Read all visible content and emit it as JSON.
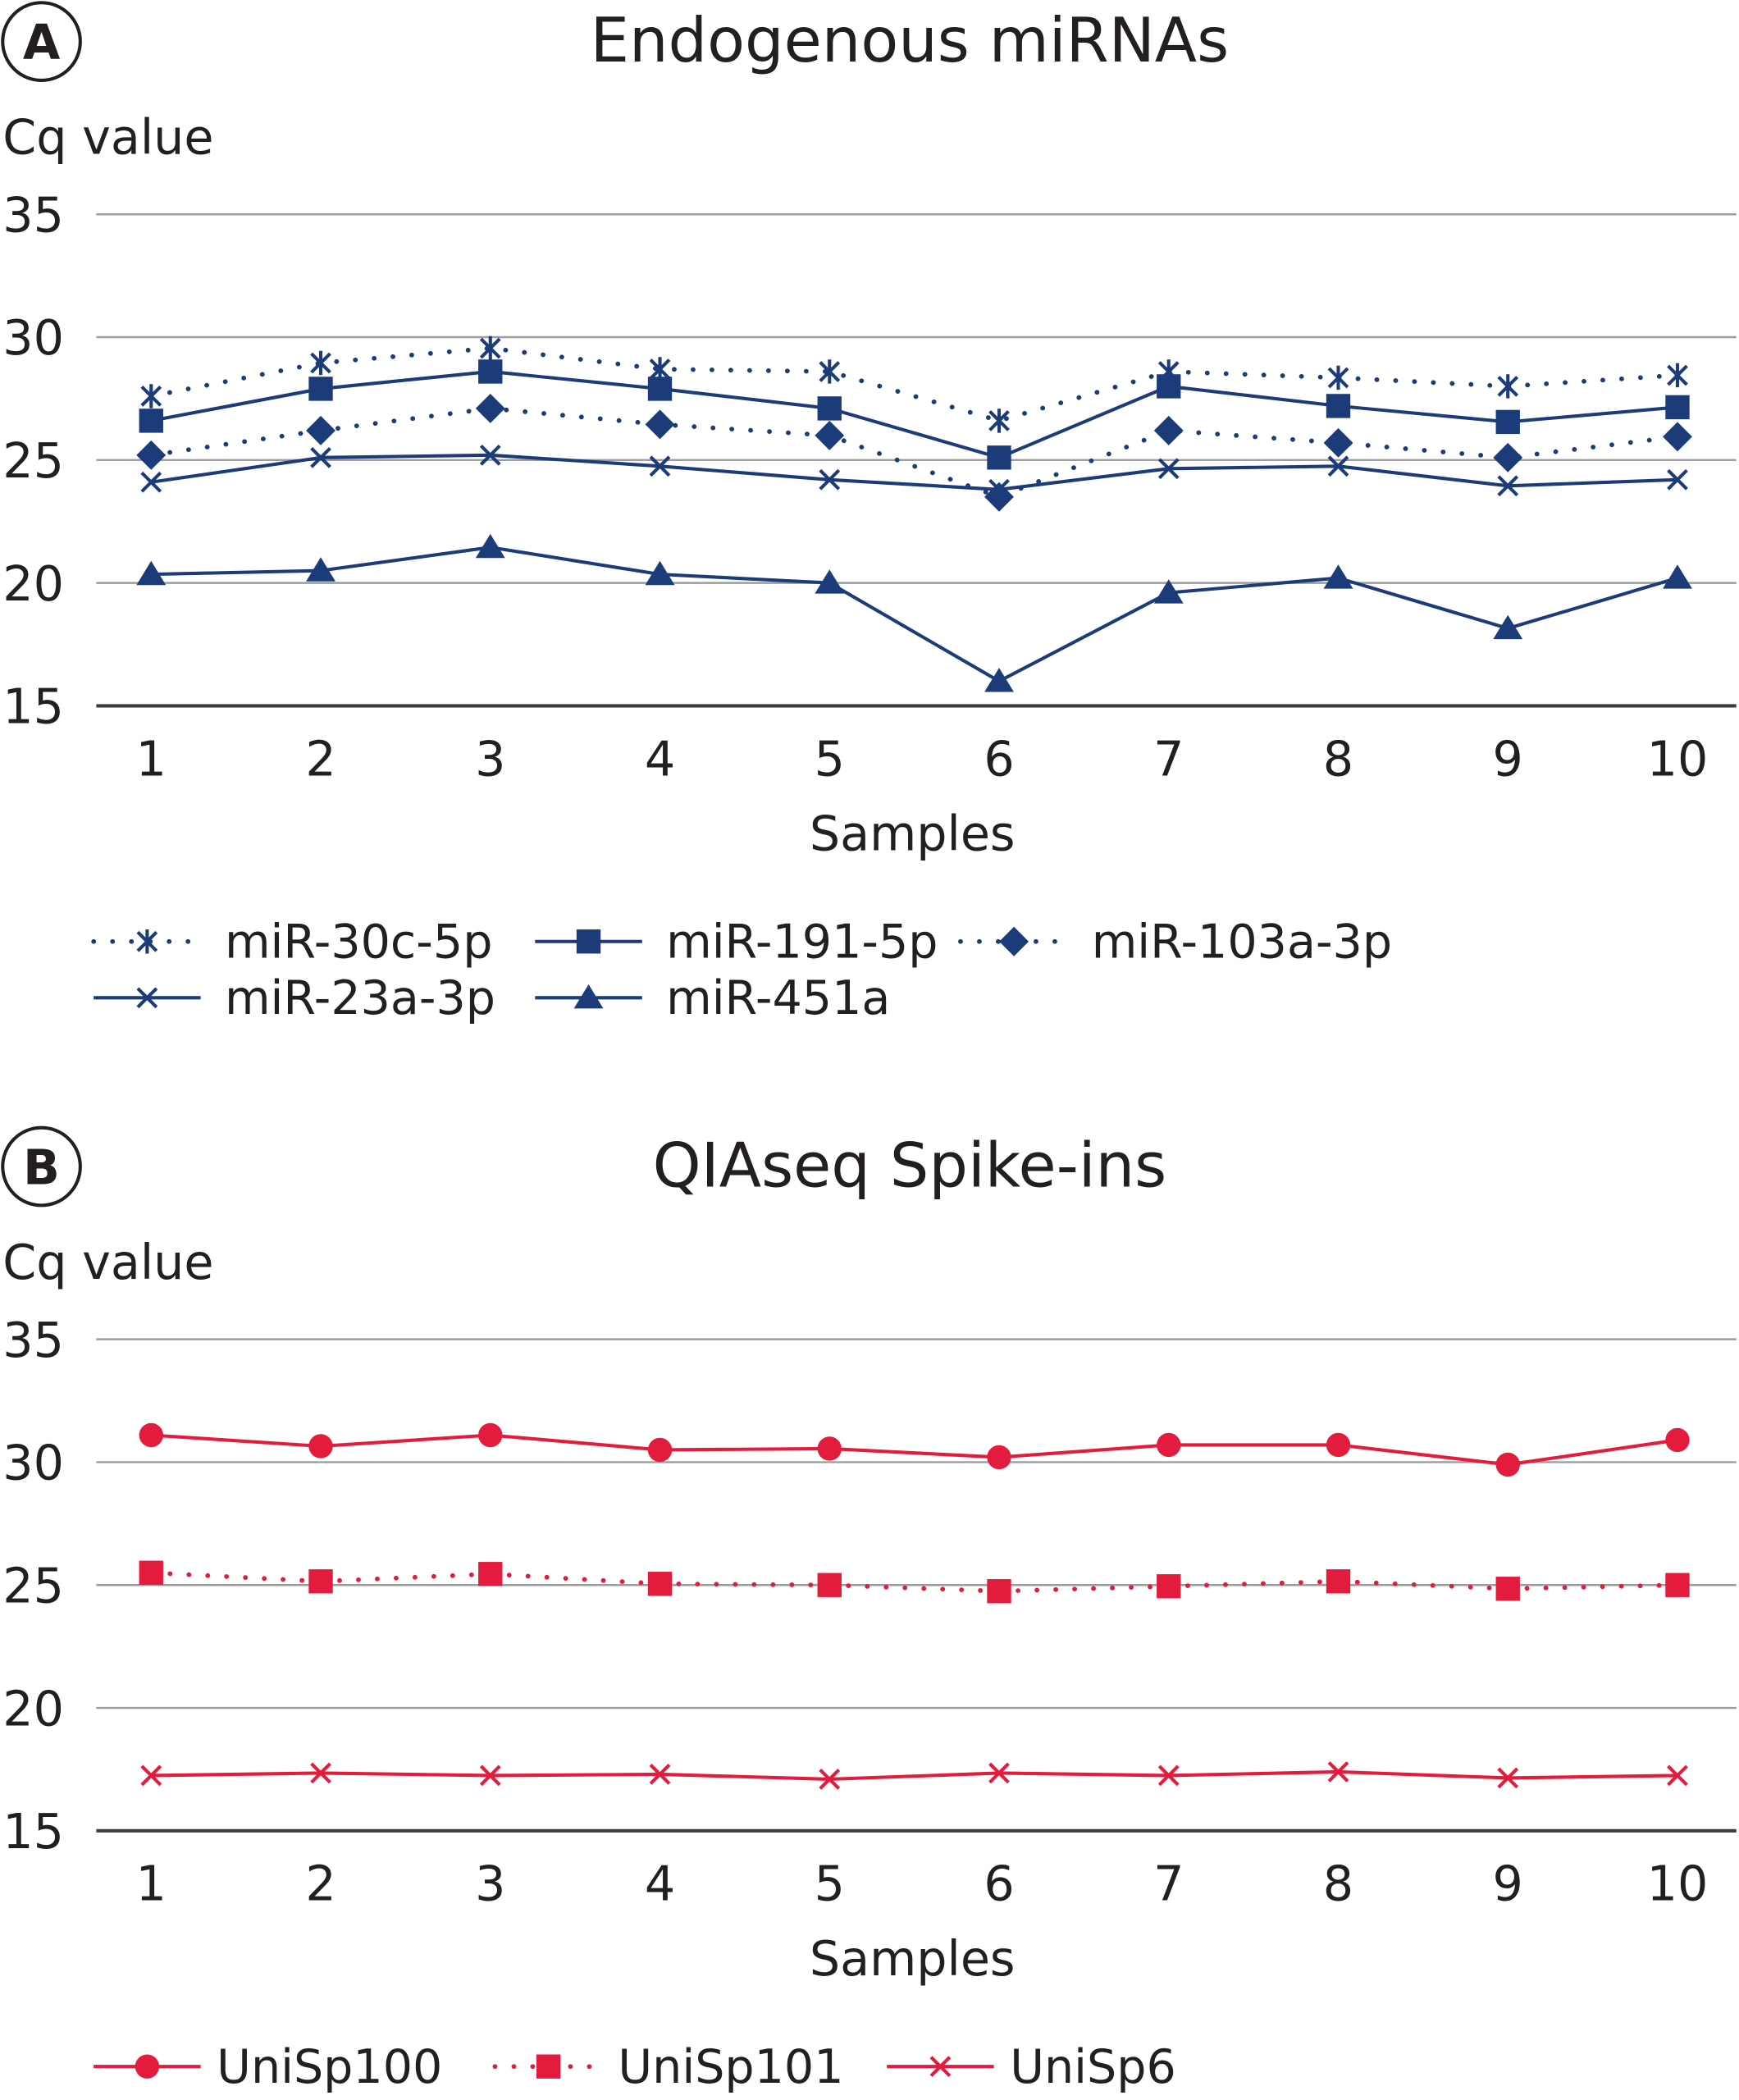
{
  "colors": {
    "navy": "#1b3c78",
    "red": "#e31b3c",
    "grid": "#9d9d9d",
    "axis": "#3c3c3c"
  },
  "chart_data": [
    {
      "panel_label": "A",
      "type": "line",
      "title": "Endogenous miRNAs",
      "ylabel": "Cq value",
      "xlabel": "Samples",
      "ylim": [
        15,
        35
      ],
      "yticks": [
        "15",
        "20",
        "25",
        "30",
        "35"
      ],
      "categories": [
        "1",
        "2",
        "3",
        "4",
        "5",
        "6",
        "7",
        "8",
        "9",
        "10"
      ],
      "grid": true,
      "legend_position": "bottom",
      "series": [
        {
          "name": "miR-30c-5p",
          "marker": "asterisk",
          "style": "dotted",
          "color": "#1b3c78",
          "values": [
            27.6,
            28.95,
            29.55,
            28.7,
            28.6,
            26.6,
            28.6,
            28.35,
            28.0,
            28.45
          ]
        },
        {
          "name": "miR-191-5p",
          "marker": "square",
          "style": "solid",
          "color": "#1b3c78",
          "values": [
            26.6,
            27.9,
            28.6,
            27.9,
            27.1,
            25.1,
            28.0,
            27.2,
            26.55,
            27.15
          ]
        },
        {
          "name": "miR-103a-3p",
          "marker": "diamond",
          "style": "dotted",
          "color": "#1b3c78",
          "values": [
            25.2,
            26.2,
            27.1,
            26.45,
            26.0,
            23.5,
            26.2,
            25.7,
            25.1,
            25.95
          ]
        },
        {
          "name": "miR-23a-3p",
          "marker": "x",
          "style": "solid",
          "color": "#1b3c78",
          "values": [
            24.1,
            25.1,
            25.2,
            24.75,
            24.2,
            23.8,
            24.65,
            24.75,
            23.95,
            24.2
          ]
        },
        {
          "name": "miR-451a",
          "marker": "triangle",
          "style": "solid",
          "color": "#1b3c78",
          "values": [
            20.35,
            20.5,
            21.45,
            20.35,
            20.0,
            16.0,
            19.6,
            20.2,
            18.15,
            20.2
          ]
        }
      ]
    },
    {
      "panel_label": "B",
      "type": "line",
      "title": "QIAseq Spike-ins",
      "ylabel": "Cq value",
      "xlabel": "Samples",
      "ylim": [
        15,
        35
      ],
      "yticks": [
        "15",
        "20",
        "25",
        "30",
        "35"
      ],
      "categories": [
        "1",
        "2",
        "3",
        "4",
        "5",
        "6",
        "7",
        "8",
        "9",
        "10"
      ],
      "grid": true,
      "legend_position": "bottom",
      "series": [
        {
          "name": "UniSp100",
          "marker": "circle",
          "style": "solid",
          "color": "#e31b3c",
          "values": [
            31.1,
            30.65,
            31.1,
            30.5,
            30.55,
            30.2,
            30.7,
            30.7,
            29.9,
            30.9
          ]
        },
        {
          "name": "UniSp101",
          "marker": "square",
          "style": "dotted",
          "color": "#e31b3c",
          "values": [
            25.5,
            25.15,
            25.45,
            25.05,
            25.0,
            24.75,
            24.95,
            25.15,
            24.85,
            25.0
          ]
        },
        {
          "name": "UniSp6",
          "marker": "x",
          "style": "solid",
          "color": "#e31b3c",
          "values": [
            17.25,
            17.35,
            17.25,
            17.3,
            17.1,
            17.35,
            17.25,
            17.4,
            17.15,
            17.25
          ]
        }
      ]
    }
  ]
}
